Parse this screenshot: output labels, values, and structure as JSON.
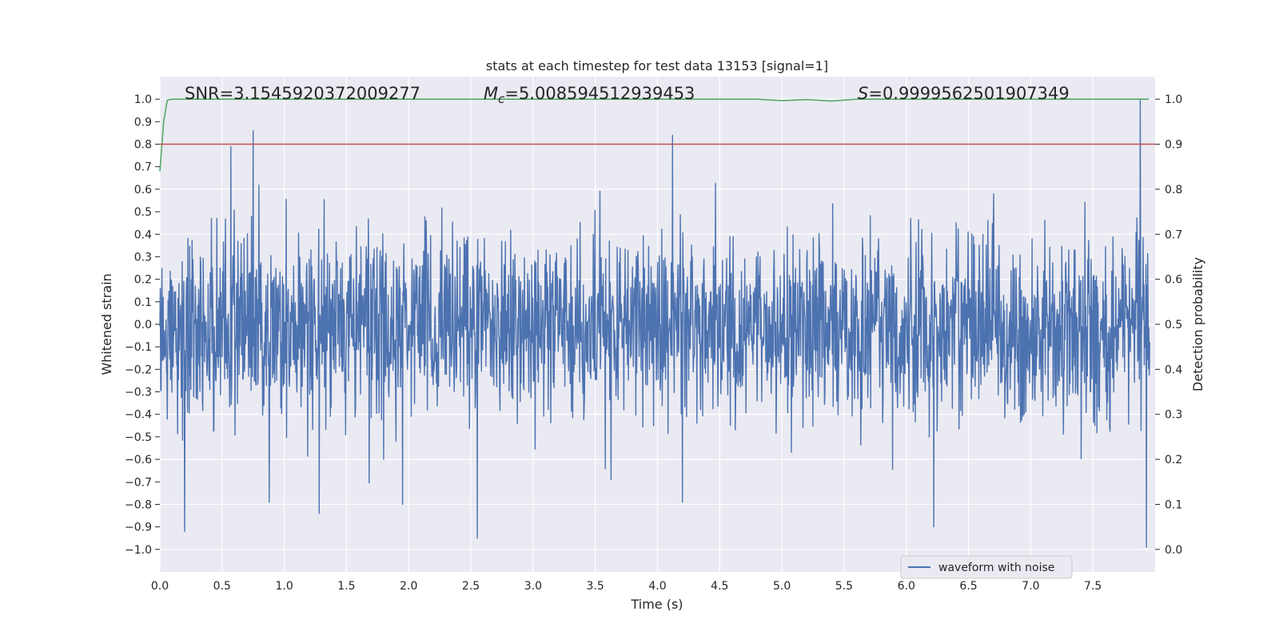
{
  "chart_data": {
    "type": "line",
    "title": "stats at each timestep for test data 13153 [signal=1]",
    "xlabel": "Time (s)",
    "ylabel": "Whitened strain",
    "y2label": "Detection probability",
    "xlim": [
      0,
      8.0
    ],
    "ylim": [
      -1.1,
      1.1
    ],
    "y2lim": [
      -0.05,
      1.05
    ],
    "x_ticks": [
      "0.0",
      "0.5",
      "1.0",
      "1.5",
      "2.0",
      "2.5",
      "3.0",
      "3.5",
      "4.0",
      "4.5",
      "5.0",
      "5.5",
      "6.0",
      "6.5",
      "7.0",
      "7.5"
    ],
    "y_ticks": [
      "1.0",
      "0.9",
      "0.8",
      "0.7",
      "0.6",
      "0.5",
      "0.4",
      "0.3",
      "0.2",
      "0.1",
      "0.0",
      "−0.1",
      "−0.2",
      "−0.3",
      "−0.4",
      "−0.5",
      "−0.6",
      "−0.7",
      "−0.8",
      "−0.9",
      "−1.0"
    ],
    "y2_ticks": [
      "1.0",
      "0.9",
      "0.8",
      "0.7",
      "0.6",
      "0.5",
      "0.4",
      "0.3",
      "0.2",
      "0.1",
      "0.0"
    ],
    "grid": true,
    "legend_position": "lower-right",
    "annotations": {
      "snr": "SNR=3.1545920372009277",
      "mc_symbol": "M",
      "mc_sub": "c",
      "mc_value": "=5.008594512939453",
      "s_symbol": "S",
      "s_value": "=0.9999562501907349"
    },
    "series": [
      {
        "name": "waveform with noise",
        "axis": "left",
        "color": "#4c72b0",
        "description_kind": "noise",
        "envelope_typical": 0.45,
        "peaks": [
          {
            "x": 0.2,
            "y": -0.92
          },
          {
            "x": 0.57,
            "y": 0.79
          },
          {
            "x": 0.75,
            "y": 0.86
          },
          {
            "x": 0.88,
            "y": -0.79
          },
          {
            "x": 1.28,
            "y": -0.84
          },
          {
            "x": 1.95,
            "y": -0.8
          },
          {
            "x": 2.55,
            "y": -0.95
          },
          {
            "x": 4.12,
            "y": 0.84
          },
          {
            "x": 4.2,
            "y": -0.79
          },
          {
            "x": 6.22,
            "y": -0.9
          },
          {
            "x": 7.88,
            "y": 1.0
          },
          {
            "x": 7.93,
            "y": -0.99
          }
        ]
      },
      {
        "name": "",
        "axis": "right",
        "color": "#55a868",
        "x": [
          0.0,
          0.03,
          0.06,
          0.1,
          0.2,
          1.0,
          2.0,
          3.0,
          4.0,
          4.8,
          5.0,
          5.2,
          5.4,
          5.6,
          6.0,
          7.0,
          7.95
        ],
        "y": [
          0.84,
          0.95,
          0.998,
          1.0,
          1.0,
          1.0,
          1.0,
          1.0,
          1.0,
          1.0,
          0.997,
          0.999,
          0.996,
          1.0,
          1.0,
          1.0,
          1.0
        ]
      },
      {
        "name": "",
        "axis": "right",
        "color": "#c44e52",
        "x": [
          0.0,
          8.0
        ],
        "y": [
          0.9,
          0.9
        ]
      }
    ]
  }
}
